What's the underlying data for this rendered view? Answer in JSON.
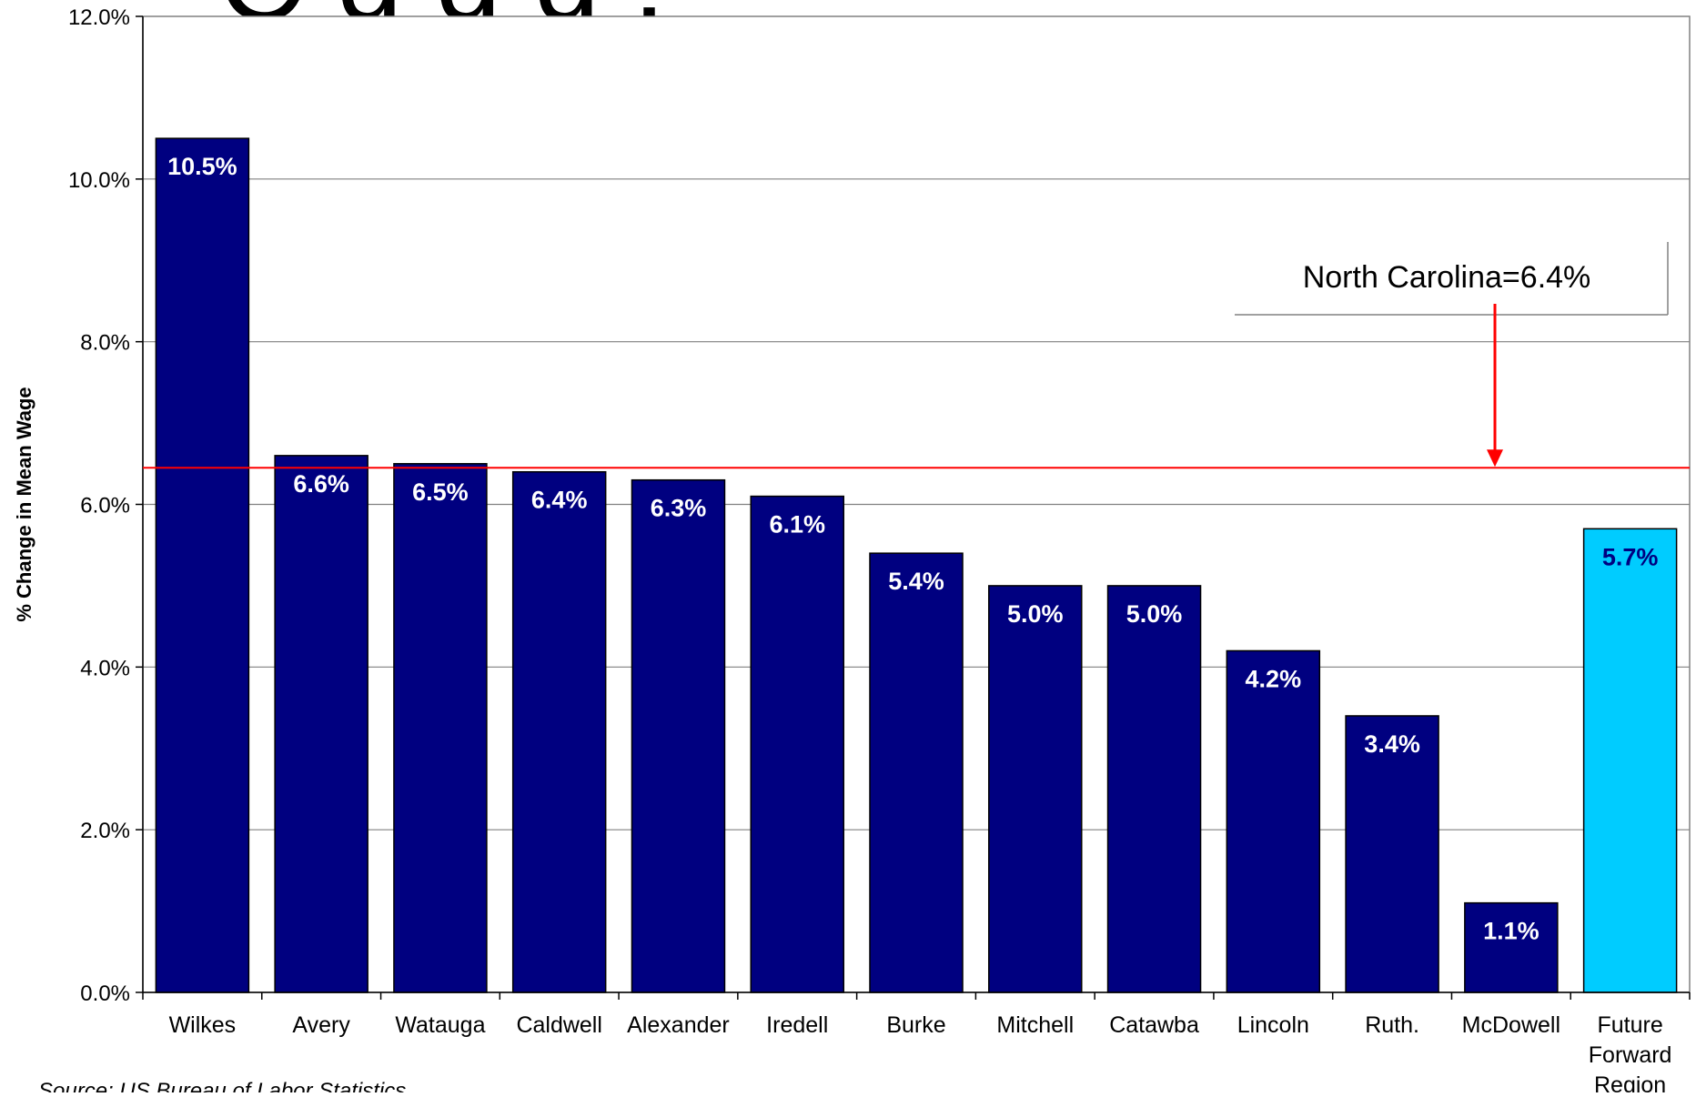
{
  "chart_data": {
    "type": "bar",
    "title_fragment": "C   g   g   g    ,",
    "ylabel": "% Change in Mean Wage",
    "xlabel": "",
    "ylim": [
      0,
      12
    ],
    "yticks": [
      "0.0%",
      "2.0%",
      "4.0%",
      "6.0%",
      "8.0%",
      "10.0%",
      "12.0%"
    ],
    "grid": true,
    "categories": [
      "Wilkes",
      "Avery",
      "Watauga",
      "Caldwell",
      "Alexander",
      "Iredell",
      "Burke",
      "Mitchell",
      "Catawba",
      "Lincoln",
      "Ruth.",
      "McDowell",
      "Future Forward Region"
    ],
    "category_lines": [
      [
        "Wilkes"
      ],
      [
        "Avery"
      ],
      [
        "Watauga"
      ],
      [
        "Caldwell"
      ],
      [
        "Alexander"
      ],
      [
        "Iredell"
      ],
      [
        "Burke"
      ],
      [
        "Mitchell"
      ],
      [
        "Catawba"
      ],
      [
        "Lincoln"
      ],
      [
        "Ruth."
      ],
      [
        "McDowell"
      ],
      [
        "Future",
        "Forward",
        "Region"
      ]
    ],
    "values": [
      10.5,
      6.6,
      6.5,
      6.4,
      6.3,
      6.1,
      5.4,
      5.0,
      5.0,
      4.2,
      3.4,
      1.1,
      5.7
    ],
    "data_labels": [
      "10.5%",
      "6.6%",
      "6.5%",
      "6.4%",
      "6.3%",
      "6.1%",
      "5.4%",
      "5.0%",
      "5.0%",
      "4.2%",
      "3.4%",
      "1.1%",
      "5.7%"
    ],
    "bar_colors": [
      "#000080",
      "#000080",
      "#000080",
      "#000080",
      "#000080",
      "#000080",
      "#000080",
      "#000080",
      "#000080",
      "#000080",
      "#000080",
      "#000080",
      "#00ccff"
    ],
    "reference_line": {
      "value": 6.45,
      "label": "North Carolina=6.4%",
      "color": "#ff0000"
    },
    "source": "Source: US Bureau of Labor Statistics"
  }
}
